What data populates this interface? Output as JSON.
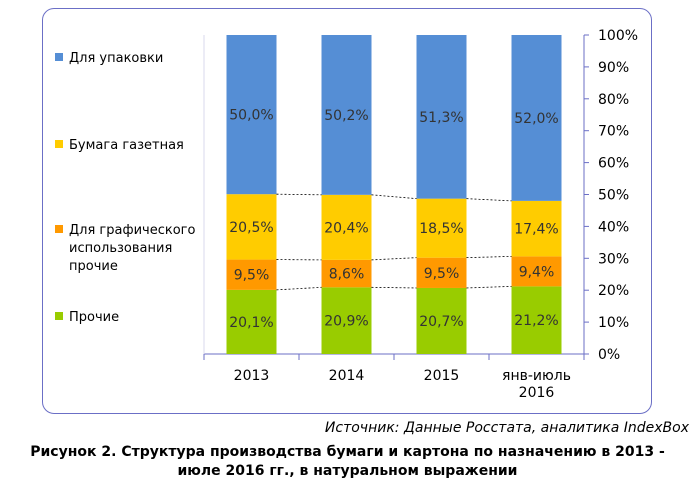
{
  "chart_data": {
    "type": "stacked_bar_100",
    "categories": [
      "2013",
      "2014",
      "2015",
      "янв-июль\n2016"
    ],
    "series": [
      {
        "name": "Прочие",
        "color": "#99cc00",
        "values": [
          20.1,
          20.9,
          20.7,
          21.2
        ],
        "labels": [
          "20,1%",
          "20,9%",
          "20,7%",
          "21,2%"
        ]
      },
      {
        "name": "Для графического\nиспользования\nпрочие",
        "color": "#ff9900",
        "values": [
          9.5,
          8.6,
          9.5,
          9.4
        ],
        "labels": [
          "9,5%",
          "8,6%",
          "9,5%",
          "9,4%"
        ]
      },
      {
        "name": "Бумага газетная",
        "color": "#ffcc00",
        "values": [
          20.5,
          20.4,
          18.5,
          17.4
        ],
        "labels": [
          "20,5%",
          "20,4%",
          "18,5%",
          "17,4%"
        ]
      },
      {
        "name": "Для упаковки",
        "color": "#558ed5",
        "values": [
          50.0,
          50.2,
          51.3,
          52.0
        ],
        "labels": [
          "50,0%",
          "50,2%",
          "51,3%",
          "52,0%"
        ]
      }
    ],
    "ylim": [
      0,
      100
    ],
    "yticks": [
      "0%",
      "10%",
      "20%",
      "30%",
      "40%",
      "50%",
      "60%",
      "70%",
      "80%",
      "90%",
      "100%"
    ],
    "legend_position": "left"
  },
  "legend": [
    {
      "label": "Для упаковки",
      "color": "#558ed5"
    },
    {
      "label": "Бумага газетная",
      "color": "#ffcc00"
    },
    {
      "label": "Для графического\nиспользования\nпрочие",
      "color": "#ff9900"
    },
    {
      "label": "Прочие",
      "color": "#99cc00"
    }
  ],
  "source": "Источник: Данные Росстата, аналитика IndexBox",
  "caption": {
    "line1": "Рисунок 2. Структура производства бумаги и картона по назначению в 2013 -",
    "line2": "июле 2016 гг., в натуральном выражении"
  }
}
